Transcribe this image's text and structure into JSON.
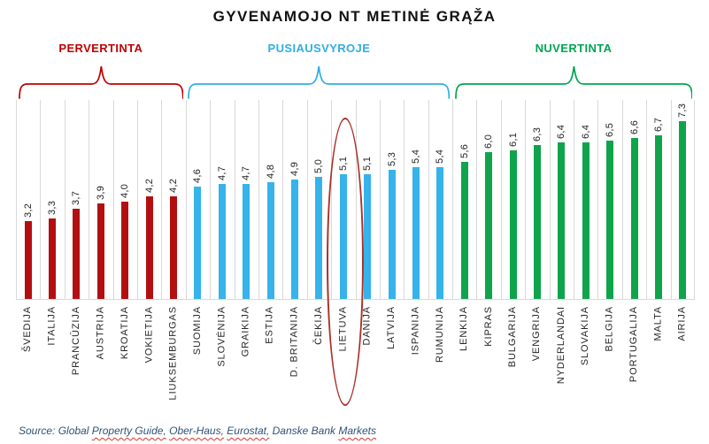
{
  "title": "GYVENAMOJO NT METINĖ GRAŽA_PLACEHOLDER",
  "chart_data": {
    "type": "bar",
    "title": "GYVENAMOJO NT METINĖ GRĄŽA",
    "value_format": "comma-decimal",
    "ylim": [
      0,
      8.2
    ],
    "grid": "vertical-category-separators",
    "legend_position": "none",
    "groups": [
      {
        "label": "PERVERTINTA",
        "slug": "pervertinta",
        "bar_color": "#B30F11",
        "accent_color": "#C00000",
        "bars": [
          {
            "country": "ŠVEDIJA",
            "value": 3.2,
            "label": "3,2"
          },
          {
            "country": "ITALIJA",
            "value": 3.3,
            "label": "3,3"
          },
          {
            "country": "PRANCŪZIJA",
            "value": 3.7,
            "label": "3,7"
          },
          {
            "country": "AUSTRIJA",
            "value": 3.9,
            "label": "3,9"
          },
          {
            "country": "KROATIJA",
            "value": 4.0,
            "label": "4,0"
          },
          {
            "country": "VOKIETIJA",
            "value": 4.2,
            "label": "4,2"
          },
          {
            "country": "LIUKSEMBURGAS",
            "value": 4.2,
            "label": "4,2"
          }
        ]
      },
      {
        "label": "PUSIAUSVYROJE",
        "slug": "pusiausvyroje",
        "bar_color": "#35B3EA",
        "accent_color": "#31AEE3",
        "bars": [
          {
            "country": "SUOMIJA",
            "value": 4.6,
            "label": "4,6"
          },
          {
            "country": "SLOVĖNIJA",
            "value": 4.7,
            "label": "4,7"
          },
          {
            "country": "GRAIKIJA",
            "value": 4.7,
            "label": "4,7"
          },
          {
            "country": "ESTIJA",
            "value": 4.8,
            "label": "4,8"
          },
          {
            "country": "D. BRITANIJA",
            "value": 4.9,
            "label": "4,9"
          },
          {
            "country": "ČEKIJA",
            "value": 5.0,
            "label": "5,0"
          },
          {
            "country": "LIETUVA",
            "value": 5.1,
            "label": "5,1"
          },
          {
            "country": "DANIJA",
            "value": 5.1,
            "label": "5,1"
          },
          {
            "country": "LATVIJA",
            "value": 5.3,
            "label": "5,3"
          },
          {
            "country": "ISPANIJA",
            "value": 5.4,
            "label": "5,4"
          },
          {
            "country": "RUMUNIJA",
            "value": 5.4,
            "label": "5,4"
          }
        ]
      },
      {
        "label": "NUVERTINTA",
        "slug": "nuvertinta",
        "bar_color": "#0FA44C",
        "accent_color": "#00A551",
        "bars": [
          {
            "country": "LENKIJA",
            "value": 5.6,
            "label": "5,6"
          },
          {
            "country": "KIPRAS",
            "value": 6.0,
            "label": "6,0"
          },
          {
            "country": "BULGARIJA",
            "value": 6.1,
            "label": "6,1"
          },
          {
            "country": "VENGRIJA",
            "value": 6.3,
            "label": "6,3"
          },
          {
            "country": "NYDERLANDAI",
            "value": 6.4,
            "label": "6,4"
          },
          {
            "country": "SLOVAKIJA",
            "value": 6.4,
            "label": "6,4"
          },
          {
            "country": "BELGIJA",
            "value": 6.5,
            "label": "6,5"
          },
          {
            "country": "PORTUGALIJA",
            "value": 6.6,
            "label": "6,6"
          },
          {
            "country": "MALTA",
            "value": 6.7,
            "label": "6,7"
          },
          {
            "country": "AIRIJA",
            "value": 7.3,
            "label": "7,3"
          }
        ]
      }
    ],
    "highlight": {
      "country": "LIETUVA",
      "shape": "ellipse",
      "color": "#A93129"
    }
  },
  "source": {
    "text_color": "#2F5377",
    "squiggle_color": "#E0322C",
    "segments": [
      {
        "text": "Source: Global ",
        "misspelled": false
      },
      {
        "text": "Property Guide,",
        "misspelled": true
      },
      {
        "text": " ",
        "misspelled": false
      },
      {
        "text": "Ober-Haus,",
        "misspelled": true
      },
      {
        "text": " ",
        "misspelled": false
      },
      {
        "text": "Eurostat,",
        "misspelled": true
      },
      {
        "text": " Danske Bank ",
        "misspelled": false
      },
      {
        "text": "Markets",
        "misspelled": true
      }
    ]
  }
}
